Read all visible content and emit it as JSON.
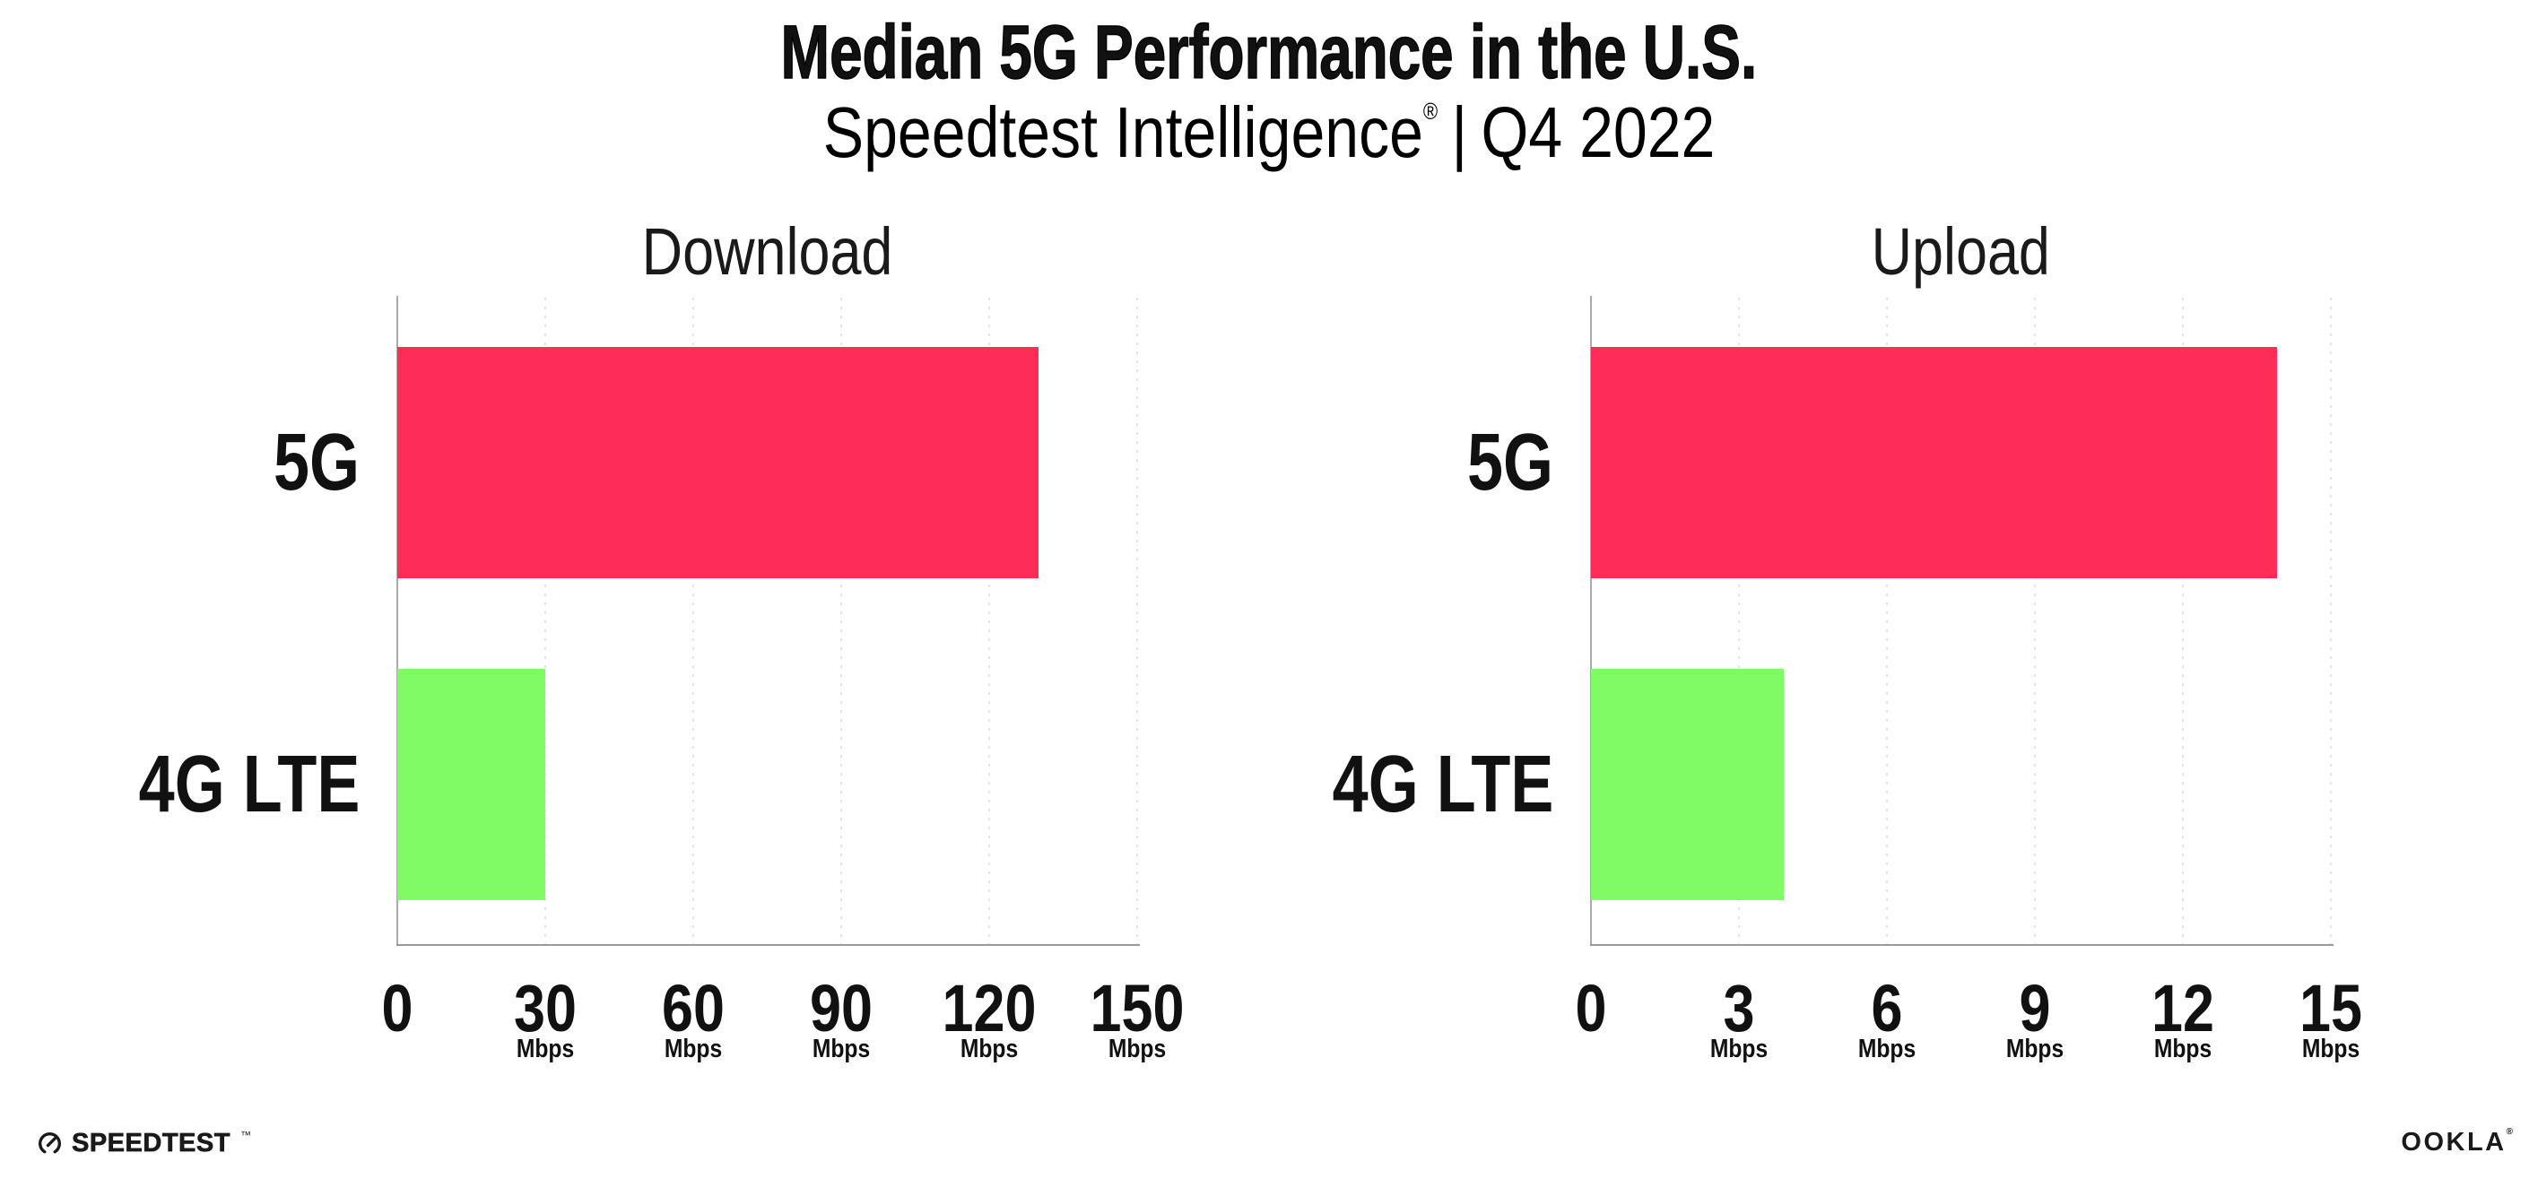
{
  "page_title": "Median 5G Performance in the U.S.",
  "subtitle": {
    "brand": "Speedtest Intelligence",
    "reg_mark": "®",
    "separator": "|",
    "period": "Q4 2022"
  },
  "chart_data": [
    {
      "type": "bar",
      "orientation": "horizontal",
      "title": "Download",
      "categories": [
        "5G",
        "4G LTE"
      ],
      "values": [
        130,
        30
      ],
      "unit": "Mbps",
      "xlim": [
        0,
        150
      ],
      "xticks": [
        0,
        30,
        60,
        90,
        120,
        150
      ],
      "bar_colors": [
        "#FD2D58",
        "#80FB66"
      ],
      "grid": "vertical-dotted",
      "legend": "none"
    },
    {
      "type": "bar",
      "orientation": "horizontal",
      "title": "Upload",
      "categories": [
        "5G",
        "4G LTE"
      ],
      "values": [
        13.9,
        3.9
      ],
      "unit": "Mbps",
      "xlim": [
        0,
        15
      ],
      "xticks": [
        0,
        3,
        6,
        9,
        12,
        15
      ],
      "bar_colors": [
        "#FD2D58",
        "#80FB66"
      ],
      "grid": "vertical-dotted",
      "legend": "none"
    }
  ],
  "footer": {
    "speedtest_text": "SPEEDTEST",
    "speedtest_mark": "™",
    "ookla_text": "OOKLA",
    "ookla_mark": "®"
  },
  "colors": {
    "bar_5g": "#FD2D58",
    "bar_4g_lte": "#80FB66",
    "axis": "#9A9A9A",
    "gridline": "#E3E3EF",
    "text": "#111111"
  }
}
